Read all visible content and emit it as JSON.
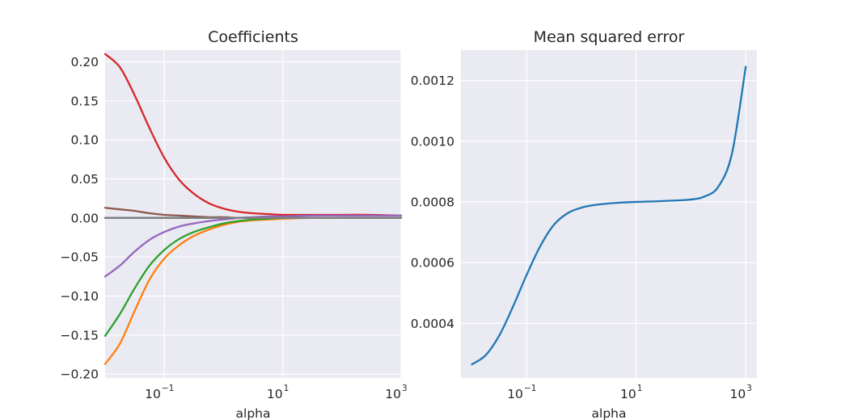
{
  "chart_data": [
    {
      "type": "line",
      "title": "Coefficients",
      "xlabel": "alpha",
      "ylabel": "",
      "xscale": "log",
      "xlim": [
        0.01,
        1000
      ],
      "ylim": [
        -0.205,
        0.215
      ],
      "grid": true,
      "legend": "none",
      "x_ticks": [
        {
          "base": "10",
          "exp": "−1",
          "value": 0.1
        },
        {
          "base": "10",
          "exp": "1",
          "value": 10
        },
        {
          "base": "10",
          "exp": "3",
          "value": 1000
        }
      ],
      "y_ticks": [
        {
          "label": "0.20",
          "value": 0.2
        },
        {
          "label": "0.15",
          "value": 0.15
        },
        {
          "label": "0.10",
          "value": 0.1
        },
        {
          "label": "0.05",
          "value": 0.05
        },
        {
          "label": "0.00",
          "value": 0.0
        },
        {
          "label": "−0.05",
          "value": -0.05
        },
        {
          "label": "−0.10",
          "value": -0.1
        },
        {
          "label": "−0.15",
          "value": -0.15
        },
        {
          "label": "−0.20",
          "value": -0.2
        }
      ],
      "x": [
        0.01,
        0.0178,
        0.0316,
        0.0562,
        0.1,
        0.178,
        0.316,
        0.562,
        1,
        1.78,
        3.16,
        5.62,
        10,
        31.6,
        100,
        316,
        1000
      ],
      "series": [
        {
          "color": "#1f77b4",
          "values": [
            0.0,
            0.0,
            0.0,
            0.0,
            0.0,
            0.0,
            0.0,
            0.0,
            0.0,
            0.0,
            0.0,
            0.0,
            0.0,
            0.0,
            0.0,
            0.0,
            0.0
          ]
        },
        {
          "color": "#ff7f0e",
          "values": [
            -0.187,
            -0.161,
            -0.119,
            -0.079,
            -0.052,
            -0.035,
            -0.023,
            -0.015,
            -0.009,
            -0.005,
            -0.003,
            -0.002,
            -0.001,
            0.0,
            0.0,
            0.0,
            0.0
          ]
        },
        {
          "color": "#2ca02c",
          "values": [
            -0.151,
            -0.123,
            -0.09,
            -0.061,
            -0.041,
            -0.027,
            -0.018,
            -0.012,
            -0.007,
            -0.004,
            -0.002,
            -0.001,
            0.0,
            0.0,
            0.0,
            0.0,
            0.0
          ]
        },
        {
          "color": "#d62728",
          "values": [
            0.21,
            0.193,
            0.157,
            0.115,
            0.077,
            0.049,
            0.031,
            0.019,
            0.012,
            0.008,
            0.006,
            0.005,
            0.004,
            0.004,
            0.004,
            0.004,
            0.003
          ]
        },
        {
          "color": "#9467bd",
          "values": [
            -0.075,
            -0.061,
            -0.043,
            -0.028,
            -0.018,
            -0.011,
            -0.007,
            -0.004,
            -0.002,
            0.0,
            0.001,
            0.002,
            0.002,
            0.003,
            0.003,
            0.003,
            0.003
          ]
        },
        {
          "color": "#8c564b",
          "values": [
            0.013,
            0.011,
            0.009,
            0.006,
            0.004,
            0.003,
            0.002,
            0.001,
            0.001,
            0.0,
            0.0,
            0.0,
            0.0,
            0.0,
            0.0,
            0.0,
            0.0
          ]
        },
        {
          "color": "#7f7f7f",
          "values": [
            0.0,
            0.0,
            0.0,
            0.0,
            0.0,
            0.0,
            0.0,
            0.0,
            0.0,
            0.0,
            0.0,
            0.0,
            0.0,
            0.0,
            0.0,
            0.0,
            0.0
          ]
        }
      ]
    },
    {
      "type": "line",
      "title": "Mean squared error",
      "xlabel": "alpha",
      "ylabel": "",
      "xscale": "log",
      "xlim": [
        0.0063,
        1600
      ],
      "ylim": [
        0.00022,
        0.0013
      ],
      "grid": true,
      "legend": "none",
      "x_ticks": [
        {
          "base": "10",
          "exp": "−1",
          "value": 0.1
        },
        {
          "base": "10",
          "exp": "1",
          "value": 10
        },
        {
          "base": "10",
          "exp": "3",
          "value": 1000
        }
      ],
      "y_ticks": [
        {
          "label": "0.0012",
          "value": 0.0012
        },
        {
          "label": "0.0010",
          "value": 0.001
        },
        {
          "label": "0.0008",
          "value": 0.0008
        },
        {
          "label": "0.0006",
          "value": 0.0006
        },
        {
          "label": "0.0004",
          "value": 0.0004
        }
      ],
      "x": [
        0.01,
        0.0178,
        0.0316,
        0.0562,
        0.1,
        0.178,
        0.316,
        0.562,
        1,
        1.78,
        3.16,
        5.62,
        10,
        31.6,
        100,
        178,
        316,
        562,
        1000
      ],
      "series": [
        {
          "color": "#1f77b4",
          "values": [
            0.000265,
            0.000295,
            0.00036,
            0.000455,
            0.00056,
            0.000655,
            0.000725,
            0.000763,
            0.000781,
            0.00079,
            0.000795,
            0.000798,
            0.0008,
            0.000803,
            0.000808,
            0.000818,
            0.00085,
            0.00096,
            0.001245
          ]
        }
      ]
    }
  ]
}
